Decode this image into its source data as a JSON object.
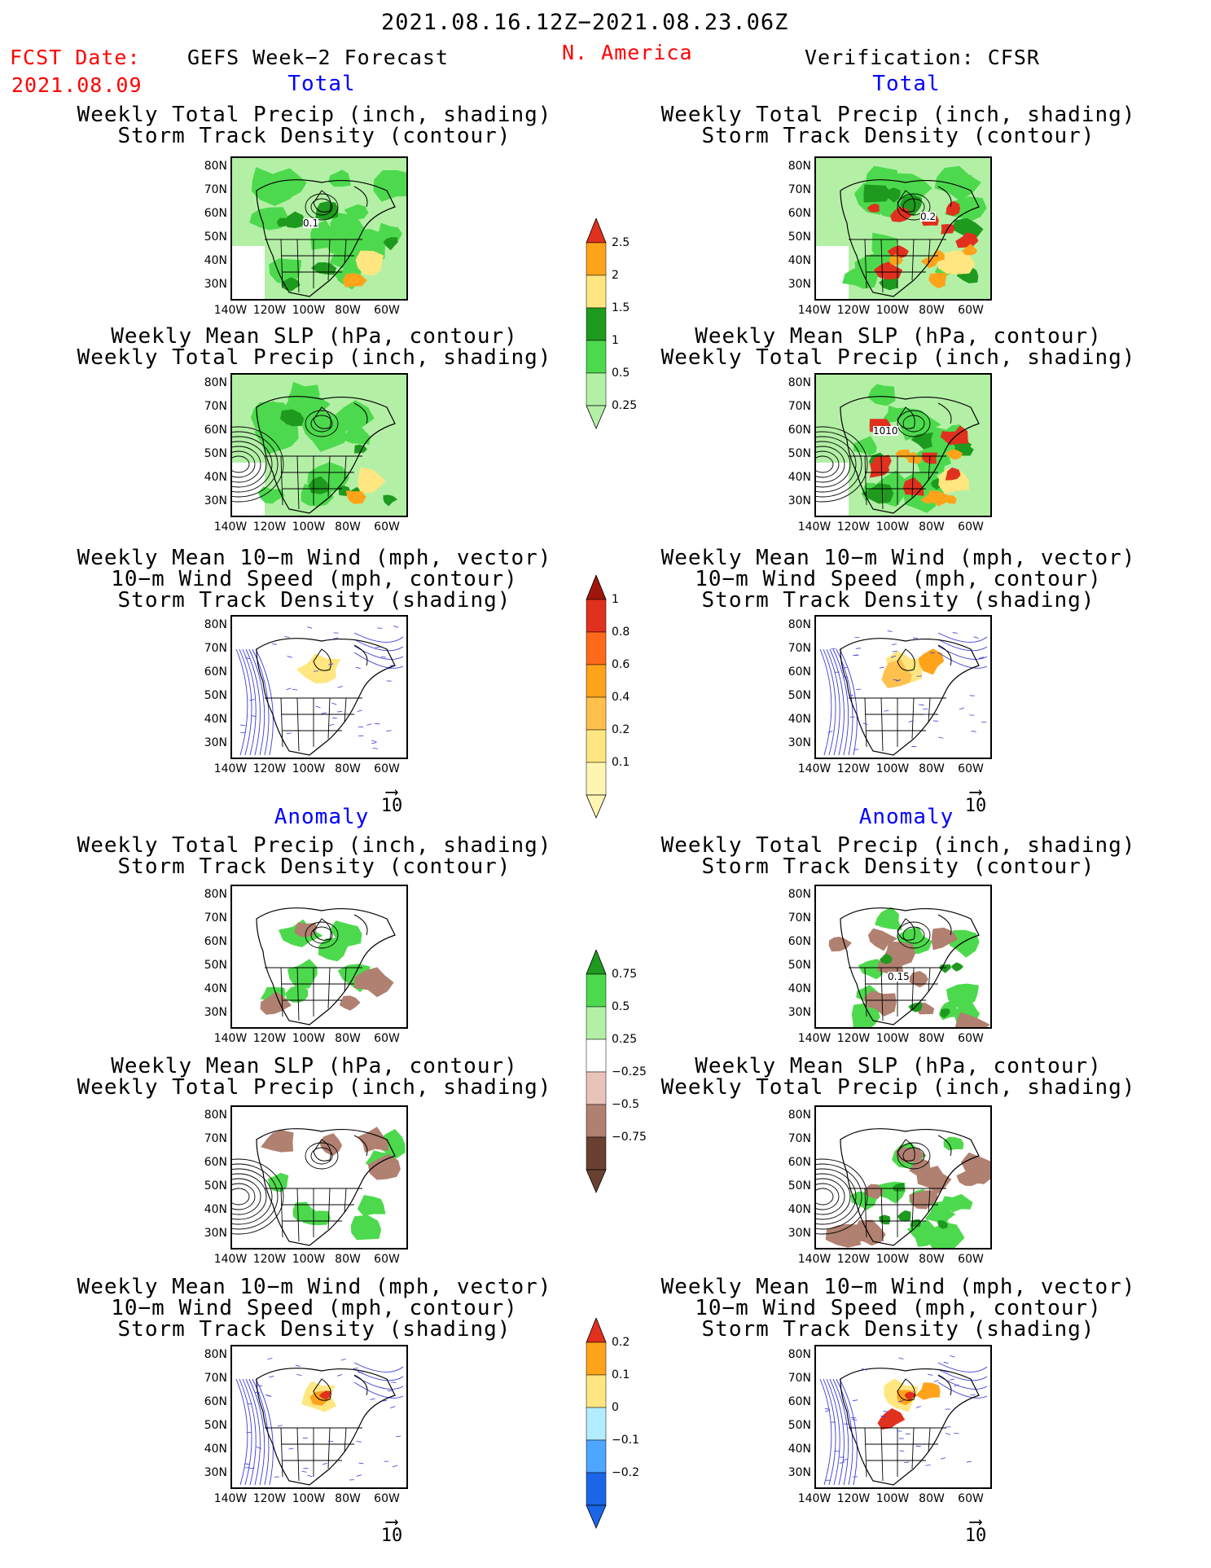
{
  "header": {
    "date_range": "2021.08.16.12Z−2021.08.23.06Z",
    "fcst_label": "FCST Date:",
    "fcst_date": "2021.08.09",
    "left_title": "GEFS Week−2 Forecast",
    "region": "N. America",
    "right_title": "Verification: CFSR"
  },
  "sections": {
    "total": "Total",
    "anomaly": "Anomaly"
  },
  "panel_titles": {
    "precip_storm": [
      "Weekly Total Precip (inch, shading)",
      "Storm Track Density (contour)"
    ],
    "slp_precip": [
      "Weekly Mean SLP (hPa, contour)",
      "Weekly Total Precip (inch, shading)"
    ],
    "wind_storm": [
      "Weekly Mean 10−m Wind (mph, vector)",
      "10−m Wind Speed (mph, contour)",
      "Storm Track Density (shading)"
    ]
  },
  "axes": {
    "lat_ticks": [
      "80N",
      "70N",
      "60N",
      "50N",
      "40N",
      "30N"
    ],
    "lon_ticks": [
      "140W",
      "120W",
      "100W",
      "80W",
      "60W"
    ]
  },
  "vector_ref": "10",
  "contour_labels": {
    "fcst_storm": "0.1",
    "ver_storm": "0.2",
    "ver_slp": "1010",
    "ver_anom_storm": "0.15"
  },
  "colorbars": {
    "precip_total": {
      "labels": [
        "2.5",
        "2",
        "1.5",
        "1",
        "0.5",
        "0.25"
      ],
      "colors": [
        "#e0301e",
        "#ffa31a",
        "#ffe680",
        "#1e9a1e",
        "#4dd94d",
        "#b3f0a6"
      ]
    },
    "storm_total": {
      "labels": [
        "1",
        "0.8",
        "0.6",
        "0.4",
        "0.2",
        "0.1"
      ],
      "colors": [
        "#a0160c",
        "#e0301e",
        "#ff6a1a",
        "#ffa31a",
        "#ffc04d",
        "#ffe680",
        "#fff5b3"
      ]
    },
    "precip_anom": {
      "labels": [
        "0.75",
        "0.5",
        "0.25",
        "−0.25",
        "−0.5",
        "−0.75"
      ],
      "colors": [
        "#1e9a1e",
        "#4dd94d",
        "#b3f0a6",
        "#ffffff",
        "#e8c4b8",
        "#b08070",
        "#6a4030"
      ]
    },
    "storm_anom": {
      "labels": [
        "0.2",
        "0.1",
        "0",
        "−0.1",
        "−0.2"
      ],
      "colors": [
        "#e0301e",
        "#ffa31a",
        "#ffe680",
        "#b3ecff",
        "#4da6ff",
        "#1a66e6"
      ]
    }
  },
  "legend_colors": {
    "green_light": "#b3f0a6",
    "green_mid": "#4dd94d",
    "green_dark": "#1e9a1e",
    "yellow": "#ffe680",
    "orange": "#ffa31a",
    "red": "#e0301e",
    "brown": "#b08070",
    "contour_blue": "#3a3ad8"
  }
}
